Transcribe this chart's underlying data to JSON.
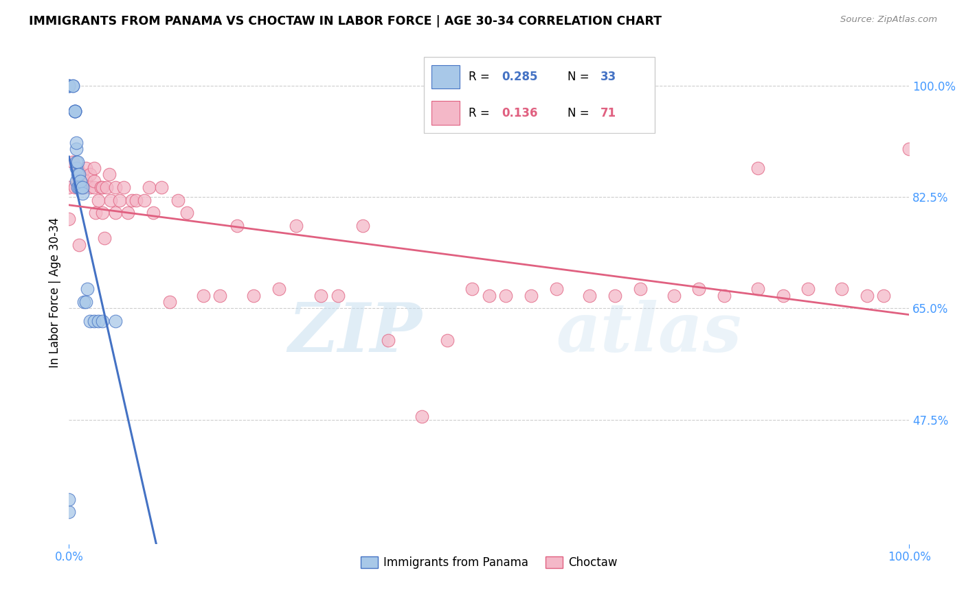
{
  "title": "IMMIGRANTS FROM PANAMA VS CHOCTAW IN LABOR FORCE | AGE 30-34 CORRELATION CHART",
  "source": "Source: ZipAtlas.com",
  "ylabel": "In Labor Force | Age 30-34",
  "xlim": [
    0.0,
    1.0
  ],
  "ylim": [
    0.28,
    1.07
  ],
  "yticks": [
    0.475,
    0.65,
    0.825,
    1.0
  ],
  "ytick_labels": [
    "47.5%",
    "65.0%",
    "82.5%",
    "100.0%"
  ],
  "xticks": [
    0.0,
    1.0
  ],
  "xtick_labels": [
    "0.0%",
    "100.0%"
  ],
  "watermark_zip": "ZIP",
  "watermark_atlas": "atlas",
  "blue_fill": "#a8c8e8",
  "blue_edge": "#4472c4",
  "pink_fill": "#f4b8c8",
  "pink_edge": "#e06080",
  "blue_line": "#4472c4",
  "pink_line": "#e06080",
  "panama_x": [
    0.0,
    0.0,
    0.0,
    0.0,
    0.0,
    0.005,
    0.005,
    0.007,
    0.007,
    0.007,
    0.007,
    0.009,
    0.009,
    0.009,
    0.009,
    0.009,
    0.01,
    0.01,
    0.01,
    0.012,
    0.012,
    0.014,
    0.014,
    0.016,
    0.016,
    0.018,
    0.02,
    0.022,
    0.025,
    0.03,
    0.035,
    0.04,
    0.055
  ],
  "panama_y": [
    0.33,
    0.35,
    1.0,
    1.0,
    1.0,
    1.0,
    1.0,
    0.96,
    0.96,
    0.96,
    0.96,
    0.85,
    0.87,
    0.88,
    0.9,
    0.91,
    0.84,
    0.86,
    0.88,
    0.84,
    0.86,
    0.84,
    0.85,
    0.83,
    0.84,
    0.66,
    0.66,
    0.68,
    0.63,
    0.63,
    0.63,
    0.63,
    0.63
  ],
  "choctaw_x": [
    0.0,
    0.0,
    0.005,
    0.007,
    0.01,
    0.01,
    0.012,
    0.015,
    0.015,
    0.018,
    0.02,
    0.02,
    0.025,
    0.025,
    0.03,
    0.03,
    0.03,
    0.032,
    0.035,
    0.038,
    0.04,
    0.04,
    0.042,
    0.045,
    0.048,
    0.05,
    0.055,
    0.055,
    0.06,
    0.065,
    0.07,
    0.075,
    0.08,
    0.09,
    0.095,
    0.1,
    0.11,
    0.12,
    0.13,
    0.14,
    0.16,
    0.18,
    0.2,
    0.22,
    0.25,
    0.27,
    0.3,
    0.32,
    0.35,
    0.38,
    0.42,
    0.45,
    0.48,
    0.5,
    0.52,
    0.55,
    0.58,
    0.62,
    0.65,
    0.68,
    0.72,
    0.75,
    0.78,
    0.82,
    0.85,
    0.88,
    0.92,
    0.95,
    0.97,
    1.0,
    0.82
  ],
  "choctaw_y": [
    0.79,
    0.84,
    0.88,
    0.84,
    0.85,
    0.87,
    0.75,
    0.84,
    0.86,
    0.84,
    0.85,
    0.87,
    0.84,
    0.86,
    0.84,
    0.85,
    0.87,
    0.8,
    0.82,
    0.84,
    0.8,
    0.84,
    0.76,
    0.84,
    0.86,
    0.82,
    0.8,
    0.84,
    0.82,
    0.84,
    0.8,
    0.82,
    0.82,
    0.82,
    0.84,
    0.8,
    0.84,
    0.66,
    0.82,
    0.8,
    0.67,
    0.67,
    0.78,
    0.67,
    0.68,
    0.78,
    0.67,
    0.67,
    0.78,
    0.6,
    0.48,
    0.6,
    0.68,
    0.67,
    0.67,
    0.67,
    0.68,
    0.67,
    0.67,
    0.68,
    0.67,
    0.68,
    0.67,
    0.68,
    0.67,
    0.68,
    0.68,
    0.67,
    0.67,
    0.9,
    0.87
  ]
}
